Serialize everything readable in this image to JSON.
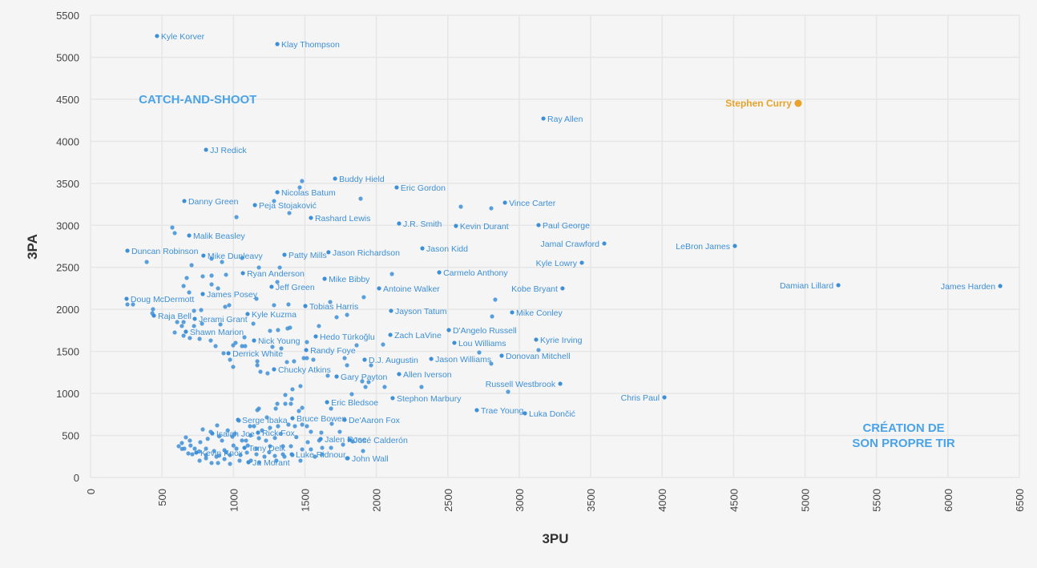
{
  "chart_data": {
    "type": "scatter",
    "xlabel": "3PU",
    "ylabel": "3PA",
    "xlim": [
      0,
      6500
    ],
    "ylim": [
      0,
      5500
    ],
    "xticks": [
      0,
      500,
      1000,
      1500,
      2000,
      2500,
      3000,
      3500,
      4000,
      4500,
      5000,
      5500,
      6000,
      6500
    ],
    "yticks": [
      0,
      500,
      1000,
      1500,
      2000,
      2500,
      3000,
      3500,
      4000,
      4500,
      5000,
      5500
    ],
    "grid": true,
    "colors": {
      "default": "#3d8fd6",
      "highlight": "#e8a22b",
      "annotation": "#4aa3e8"
    },
    "annotations": [
      {
        "text": "CATCH-AND-SHOOT",
        "x": 750,
        "y": 4500
      },
      {
        "text": "CRÉATION DE",
        "x": 5690,
        "y": 590
      },
      {
        "text": "SON PROPRE TIR",
        "x": 5690,
        "y": 410
      }
    ],
    "highlight": {
      "name": "Stephen Curry",
      "x": 4952,
      "y": 4452
    },
    "labeled_points": [
      {
        "name": "Kyle Korver",
        "x": 465,
        "y": 5253
      },
      {
        "name": "Klay Thompson",
        "x": 1307,
        "y": 5157
      },
      {
        "name": "Ray Allen",
        "x": 3169,
        "y": 4271
      },
      {
        "name": "JJ Redick",
        "x": 808,
        "y": 3899
      },
      {
        "name": "Buddy Hield",
        "x": 1711,
        "y": 3556
      },
      {
        "name": "Eric Gordon",
        "x": 2142,
        "y": 3451
      },
      {
        "name": "Nicolas Batum",
        "x": 1307,
        "y": 3394
      },
      {
        "name": "Danny Green",
        "x": 656,
        "y": 3289
      },
      {
        "name": "Peja Stojaković",
        "x": 1150,
        "y": 3241
      },
      {
        "name": "Vince Carter",
        "x": 2900,
        "y": 3270
      },
      {
        "name": "Rashard Lewis",
        "x": 1542,
        "y": 3089
      },
      {
        "name": "J.R. Smith",
        "x": 2159,
        "y": 3022
      },
      {
        "name": "Kevin Durant",
        "x": 2557,
        "y": 2993
      },
      {
        "name": "Paul George",
        "x": 3135,
        "y": 3003
      },
      {
        "name": "Malik Beasley",
        "x": 690,
        "y": 2879
      },
      {
        "name": "Jamal Crawford",
        "x": 3595,
        "y": 2784
      },
      {
        "name": "LeBron James",
        "x": 4509,
        "y": 2755
      },
      {
        "name": "Duncan Robinson",
        "x": 258,
        "y": 2698
      },
      {
        "name": "Mike Dunleavy",
        "x": 790,
        "y": 2640
      },
      {
        "name": "Patty Mills",
        "x": 1357,
        "y": 2650
      },
      {
        "name": "Jason Richardson",
        "x": 1665,
        "y": 2680
      },
      {
        "name": "Jason Kidd",
        "x": 2322,
        "y": 2726
      },
      {
        "name": "Kyle Lowry",
        "x": 3438,
        "y": 2555
      },
      {
        "name": "Ryan Anderson",
        "x": 1066,
        "y": 2431
      },
      {
        "name": "Carmelo Anthony",
        "x": 2440,
        "y": 2440
      },
      {
        "name": "Mike Bibby",
        "x": 1638,
        "y": 2364
      },
      {
        "name": "Jeff Green",
        "x": 1267,
        "y": 2269
      },
      {
        "name": "Damian Lillard",
        "x": 5233,
        "y": 2288
      },
      {
        "name": "James Harden",
        "x": 6366,
        "y": 2278
      },
      {
        "name": "Antoine Walker",
        "x": 2019,
        "y": 2250
      },
      {
        "name": "Kobe Bryant",
        "x": 3303,
        "y": 2250
      },
      {
        "name": "Doug McDermott",
        "x": 252,
        "y": 2126
      },
      {
        "name": "James Posey",
        "x": 785,
        "y": 2183
      },
      {
        "name": "Tobias Harris",
        "x": 1503,
        "y": 2040
      },
      {
        "name": "Jayson Tatum",
        "x": 2103,
        "y": 1983
      },
      {
        "name": "Mike Conley",
        "x": 2950,
        "y": 1964
      },
      {
        "name": "Kyle Kuzma",
        "x": 1099,
        "y": 1945
      },
      {
        "name": "Raja Bell",
        "x": 443,
        "y": 1926
      },
      {
        "name": "Jerami Grant",
        "x": 729,
        "y": 1888
      },
      {
        "name": "D'Angelo Russell",
        "x": 2507,
        "y": 1754
      },
      {
        "name": "Shawn Marion",
        "x": 667,
        "y": 1735
      },
      {
        "name": "Zach LaVine",
        "x": 2098,
        "y": 1697
      },
      {
        "name": "Hedo Türkoğlu",
        "x": 1576,
        "y": 1678
      },
      {
        "name": "Kyrie Irving",
        "x": 3118,
        "y": 1640
      },
      {
        "name": "Nick Young",
        "x": 1144,
        "y": 1630
      },
      {
        "name": "Lou Williams",
        "x": 2546,
        "y": 1602
      },
      {
        "name": "Randy Foye",
        "x": 1509,
        "y": 1516
      },
      {
        "name": "Derrick White",
        "x": 965,
        "y": 1478
      },
      {
        "name": "Donovan Mitchell",
        "x": 2877,
        "y": 1449
      },
      {
        "name": "D.J. Augustin",
        "x": 1918,
        "y": 1401
      },
      {
        "name": "Jason Williams",
        "x": 2384,
        "y": 1411
      },
      {
        "name": "Chucky Atkins",
        "x": 1284,
        "y": 1287
      },
      {
        "name": "Gary Payton",
        "x": 1722,
        "y": 1201
      },
      {
        "name": "Allen Iverson",
        "x": 2159,
        "y": 1230
      },
      {
        "name": "Russell Westbrook",
        "x": 3287,
        "y": 1115
      },
      {
        "name": "Chris Paul",
        "x": 4016,
        "y": 953
      },
      {
        "name": "Stephon Marbury",
        "x": 2114,
        "y": 944
      },
      {
        "name": "Eric Bledsoe",
        "x": 1655,
        "y": 896
      },
      {
        "name": "Trae Young",
        "x": 2703,
        "y": 801
      },
      {
        "name": "Luka Dončić",
        "x": 3040,
        "y": 763
      },
      {
        "name": "Serge Ibaka",
        "x": 1032,
        "y": 686
      },
      {
        "name": "Bruce Bowen",
        "x": 1413,
        "y": 705
      },
      {
        "name": "De'Aaron Fox",
        "x": 1778,
        "y": 686
      },
      {
        "name": "Isaiah Joe",
        "x": 852,
        "y": 524
      },
      {
        "name": "Rick Fox",
        "x": 1172,
        "y": 534
      },
      {
        "name": "Jalen Rose",
        "x": 1610,
        "y": 458
      },
      {
        "name": "José Calderón",
        "x": 1812,
        "y": 448
      },
      {
        "name": "Tony Delk",
        "x": 1077,
        "y": 353
      },
      {
        "name": "Kevin Knox",
        "x": 740,
        "y": 296
      },
      {
        "name": "Luke Ridnour",
        "x": 1408,
        "y": 276
      },
      {
        "name": "John Wall",
        "x": 1800,
        "y": 229
      },
      {
        "name": "Ja Morant",
        "x": 1105,
        "y": 181
      }
    ],
    "unlabeled_points": [
      [
        1480,
        3527
      ],
      [
        1464,
        3451
      ],
      [
        1890,
        3317
      ],
      [
        1284,
        3289
      ],
      [
        1021,
        3098
      ],
      [
        1391,
        3146
      ],
      [
        572,
        2974
      ],
      [
        589,
        2908
      ],
      [
        393,
        2564
      ],
      [
        707,
        2526
      ],
      [
        847,
        2603
      ],
      [
        920,
        2564
      ],
      [
        1060,
        2612
      ],
      [
        1178,
        2498
      ],
      [
        1324,
        2498
      ],
      [
        673,
        2374
      ],
      [
        785,
        2393
      ],
      [
        847,
        2402
      ],
      [
        948,
        2412
      ],
      [
        651,
        2278
      ],
      [
        847,
        2297
      ],
      [
        892,
        2250
      ],
      [
        690,
        2202
      ],
      [
        1307,
        2326
      ],
      [
        258,
        2059
      ],
      [
        297,
        2059
      ],
      [
        1161,
        2126
      ],
      [
        942,
        2031
      ],
      [
        970,
        2050
      ],
      [
        1284,
        2050
      ],
      [
        1385,
        2059
      ],
      [
        1677,
        2088
      ],
      [
        1912,
        2145
      ],
      [
        1722,
        1907
      ],
      [
        1795,
        1935
      ],
      [
        437,
        2002
      ],
      [
        432,
        1954
      ],
      [
        774,
        1992
      ],
      [
        724,
        1983
      ],
      [
        606,
        1849
      ],
      [
        651,
        1849
      ],
      [
        639,
        1802
      ],
      [
        724,
        1802
      ],
      [
        780,
        1830
      ],
      [
        909,
        1821
      ],
      [
        1139,
        1830
      ],
      [
        589,
        1725
      ],
      [
        651,
        1687
      ],
      [
        695,
        1659
      ],
      [
        763,
        1649
      ],
      [
        841,
        1630
      ],
      [
        875,
        1563
      ],
      [
        931,
        1478
      ],
      [
        976,
        1401
      ],
      [
        998,
        1316
      ],
      [
        998,
        1573
      ],
      [
        1015,
        1602
      ],
      [
        1060,
        1563
      ],
      [
        1082,
        1563
      ],
      [
        1077,
        1668
      ],
      [
        1256,
        1745
      ],
      [
        1312,
        1754
      ],
      [
        1379,
        1773
      ],
      [
        1396,
        1783
      ],
      [
        1598,
        1802
      ],
      [
        1273,
        1554
      ],
      [
        1335,
        1535
      ],
      [
        1514,
        1611
      ],
      [
        1167,
        1382
      ],
      [
        1167,
        1335
      ],
      [
        1189,
        1258
      ],
      [
        1239,
        1239
      ],
      [
        1374,
        1373
      ],
      [
        1424,
        1382
      ],
      [
        1492,
        1420
      ],
      [
        1514,
        1420
      ],
      [
        1559,
        1401
      ],
      [
        1778,
        1420
      ],
      [
        1795,
        1335
      ],
      [
        1862,
        1573
      ],
      [
        1963,
        1335
      ],
      [
        2047,
        1582
      ],
      [
        1660,
        1211
      ],
      [
        1901,
        1144
      ],
      [
        1946,
        1135
      ],
      [
        2109,
        2421
      ],
      [
        2591,
        3222
      ],
      [
        2804,
        3203
      ],
      [
        2832,
        2116
      ],
      [
        2810,
        1916
      ],
      [
        2720,
        1487
      ],
      [
        2804,
        1354
      ],
      [
        3135,
        1516
      ],
      [
        2922,
        1020
      ],
      [
        2316,
        1077
      ],
      [
        2058,
        1077
      ],
      [
        1469,
        1087
      ],
      [
        1413,
        1049
      ],
      [
        1363,
        982
      ],
      [
        1408,
        934
      ],
      [
        1363,
        877
      ],
      [
        1402,
        877
      ],
      [
        1307,
        877
      ],
      [
        1296,
        820
      ],
      [
        1178,
        820
      ],
      [
        1167,
        801
      ],
      [
        1481,
        829
      ],
      [
        1458,
        791
      ],
      [
        1683,
        820
      ],
      [
        1828,
        991
      ],
      [
        1924,
        1077
      ],
      [
        886,
        620
      ],
      [
        785,
        572
      ],
      [
        841,
        544
      ],
      [
        667,
        477
      ],
      [
        617,
        372
      ],
      [
        656,
        343
      ],
      [
        684,
        286
      ],
      [
        763,
        200
      ],
      [
        847,
        172
      ],
      [
        892,
        172
      ],
      [
        976,
        162
      ],
      [
        1043,
        200
      ],
      [
        1122,
        200
      ],
      [
        1217,
        248
      ],
      [
        1290,
        257
      ],
      [
        1357,
        248
      ],
      [
        1469,
        200
      ],
      [
        1413,
        267
      ],
      [
        1481,
        334
      ],
      [
        1542,
        334
      ],
      [
        1621,
        353
      ],
      [
        1683,
        353
      ],
      [
        1744,
        544
      ],
      [
        1615,
        534
      ],
      [
        1542,
        544
      ],
      [
        1514,
        610
      ],
      [
        1481,
        629
      ],
      [
        1430,
        610
      ],
      [
        1767,
        391
      ],
      [
        1834,
        429
      ],
      [
        1907,
        315
      ],
      [
        1688,
        639
      ],
      [
        1795,
        229
      ],
      [
        1038,
        677
      ],
      [
        1234,
        715
      ],
      [
        1116,
        610
      ],
      [
        1144,
        610
      ],
      [
        1256,
        591
      ],
      [
        1312,
        610
      ],
      [
        1385,
        629
      ],
      [
        1178,
        467
      ],
      [
        1088,
        439
      ],
      [
        993,
        486
      ],
      [
        920,
        439
      ],
      [
        768,
        420
      ],
      [
        729,
        343
      ],
      [
        808,
        343
      ],
      [
        864,
        315
      ],
      [
        937,
        324
      ],
      [
        1021,
        343
      ],
      [
        1094,
        296
      ],
      [
        1161,
        276
      ],
      [
        1256,
        372
      ],
      [
        1346,
        372
      ],
      [
        1402,
        372
      ],
      [
        712,
        276
      ],
      [
        639,
        410
      ],
      [
        695,
        439
      ],
      [
        808,
        267
      ],
      [
        937,
        219
      ],
      [
        976,
        267
      ],
      [
        1049,
        267
      ],
      [
        808,
        229
      ],
      [
        881,
        248
      ],
      [
        1161,
        343
      ],
      [
        1228,
        439
      ],
      [
        1346,
        276
      ],
      [
        1570,
        248
      ],
      [
        1621,
        276
      ],
      [
        960,
        560
      ],
      [
        1010,
        520
      ],
      [
        900,
        490
      ],
      [
        1060,
        440
      ],
      [
        1120,
        500
      ],
      [
        1200,
        560
      ],
      [
        1290,
        470
      ],
      [
        1330,
        520
      ],
      [
        1440,
        480
      ],
      [
        1520,
        420
      ],
      [
        1600,
        440
      ],
      [
        700,
        380
      ],
      [
        760,
        310
      ],
      [
        820,
        460
      ],
      [
        1000,
        380
      ],
      [
        1100,
        380
      ],
      [
        1250,
        300
      ],
      [
        1300,
        200
      ],
      [
        1180,
        180
      ],
      [
        900,
        260
      ],
      [
        950,
        300
      ],
      [
        640,
        340
      ]
    ]
  }
}
